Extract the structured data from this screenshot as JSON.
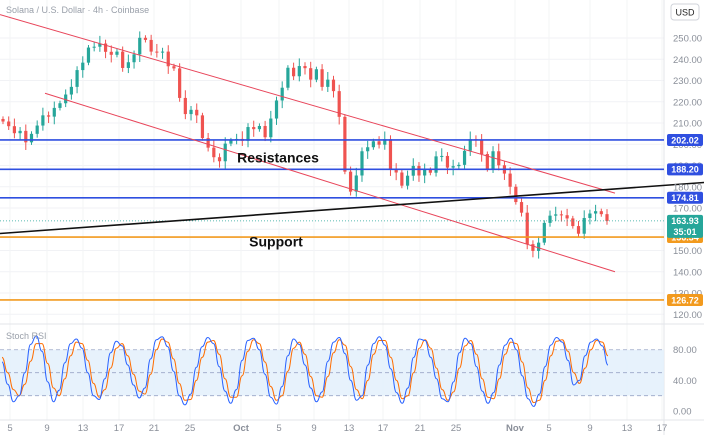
{
  "chart_data": {
    "type": "candlestick",
    "title": "Solana / U.S. Dollar · 4h · Coinbase",
    "currency": "USD",
    "y_ticks": [
      250,
      240,
      230,
      220,
      210,
      200,
      190,
      180,
      170,
      160,
      150,
      140,
      130,
      120
    ],
    "ylim": [
      115,
      258
    ],
    "x_ticks": [
      "5",
      "9",
      "13",
      "17",
      "21",
      "25",
      "Oct",
      "5",
      "9",
      "13",
      "17",
      "21",
      "25",
      "Nov",
      "5",
      "9",
      "13",
      "17"
    ],
    "closes": [
      210.7,
      208.5,
      205.2,
      206.3,
      200.9,
      204.9,
      208.8,
      213.6,
      213.0,
      217.1,
      219.3,
      223.4,
      227.0,
      234.9,
      238.4,
      245.5,
      245.9,
      247.4,
      243.5,
      242.1,
      243.6,
      235.9,
      238.6,
      242.3,
      250.1,
      249.1,
      243.6,
      243.2,
      243.6,
      236.7,
      235.7,
      221.8,
      214.2,
      216.2,
      213.6,
      202.9,
      198.4,
      193.9,
      192.0,
      200.3,
      201.8,
      202.5,
      201.6,
      208.1,
      207.1,
      208.6,
      203.3,
      212.1,
      220.6,
      226.6,
      236.0,
      232.0,
      236.8,
      235.8,
      230.4,
      235.3,
      227.0,
      230.4,
      225.0,
      212.9,
      187.1,
      177.7,
      185.3,
      196.7,
      198.6,
      201.4,
      199.8,
      202.4,
      188.1,
      186.7,
      180.5,
      185.2,
      189.8,
      185.3,
      187.9,
      186.6,
      194.3,
      194.5,
      189.0,
      189.7,
      190.3,
      196.9,
      202.4,
      201.8,
      195.4,
      188.3,
      196.7,
      190.1,
      186.2,
      180.0,
      172.8,
      167.8,
      153.0,
      149.8,
      153.7,
      163.0,
      166.4,
      167.0,
      166.6,
      165.1,
      161.5,
      157.9,
      165.3,
      167.4,
      168.5,
      167.1,
      163.9
    ],
    "levels": [
      {
        "label": "202.02",
        "value": 202.02,
        "color": "#2f4fe0"
      },
      {
        "label": "188.20",
        "value": 188.2,
        "color": "#2f4fe0"
      },
      {
        "label": "174.81",
        "value": 174.81,
        "color": "#2f4fe0"
      },
      {
        "label": "156.34",
        "value": 156.34,
        "color": "#f29a1e"
      },
      {
        "label": "126.72",
        "value": 126.72,
        "color": "#f29a1e"
      }
    ],
    "current_price": {
      "price": "163.93",
      "countdown": "35:01"
    },
    "channel": {
      "upper": [
        [
          0,
          261
        ],
        [
          615,
          177
        ]
      ],
      "lower": [
        [
          45,
          224
        ],
        [
          615,
          140
        ]
      ],
      "color": "#e8455a"
    },
    "trendline": [
      [
        0,
        158
      ],
      [
        704,
        182
      ]
    ],
    "annotations": [
      {
        "text": "Resistances",
        "price": 191.5,
        "x": 278
      },
      {
        "text": "Support",
        "price": 152,
        "x": 276
      }
    ],
    "stoch_rsi": {
      "title": "Stoch RSI",
      "ticks": [
        "80.00",
        "40.00",
        "0.00"
      ],
      "tick_values": [
        80,
        40,
        0
      ],
      "band": [
        20,
        80
      ],
      "midline": 50,
      "k": [
        64,
        35,
        12,
        20,
        50,
        87,
        98,
        78,
        38,
        12,
        27,
        63,
        88,
        94,
        82,
        50,
        20,
        15,
        42,
        76,
        91,
        85,
        60,
        34,
        17,
        30,
        68,
        93,
        97,
        84,
        52,
        20,
        8,
        22,
        57,
        84,
        96,
        88,
        58,
        26,
        10,
        28,
        66,
        92,
        95,
        80,
        48,
        18,
        9,
        32,
        72,
        94,
        87,
        60,
        30,
        12,
        25,
        65,
        90,
        96,
        75,
        40,
        14,
        20,
        60,
        88,
        97,
        86,
        55,
        24,
        10,
        30,
        70,
        94,
        92,
        70,
        42,
        16,
        12,
        38,
        76,
        95,
        88,
        58,
        26,
        10,
        24,
        60,
        86,
        95,
        80,
        46,
        16,
        6,
        22,
        58,
        86,
        96,
        90,
        66,
        34,
        40,
        72,
        90,
        94,
        85,
        60
      ],
      "d": [
        70,
        50,
        28,
        20,
        35,
        65,
        88,
        88,
        62,
        30,
        20,
        42,
        72,
        90,
        88,
        66,
        36,
        18,
        28,
        56,
        82,
        88,
        72,
        48,
        26,
        22,
        48,
        80,
        94,
        90,
        68,
        36,
        14,
        15,
        40,
        70,
        90,
        92,
        74,
        42,
        18,
        18,
        46,
        78,
        93,
        88,
        64,
        32,
        14,
        20,
        52,
        82,
        90,
        74,
        45,
        20,
        18,
        45,
        76,
        93,
        86,
        58,
        28,
        16,
        40,
        74,
        92,
        92,
        70,
        40,
        16,
        20,
        50,
        82,
        93,
        82,
        56,
        28,
        14,
        25,
        56,
        85,
        92,
        74,
        42,
        18,
        16,
        42,
        74,
        90,
        88,
        64,
        30,
        11,
        14,
        40,
        72,
        91,
        93,
        78,
        50,
        36,
        56,
        80,
        92,
        90,
        72
      ],
      "k_color": "#2962ff",
      "d_color": "#ff6d00"
    }
  }
}
